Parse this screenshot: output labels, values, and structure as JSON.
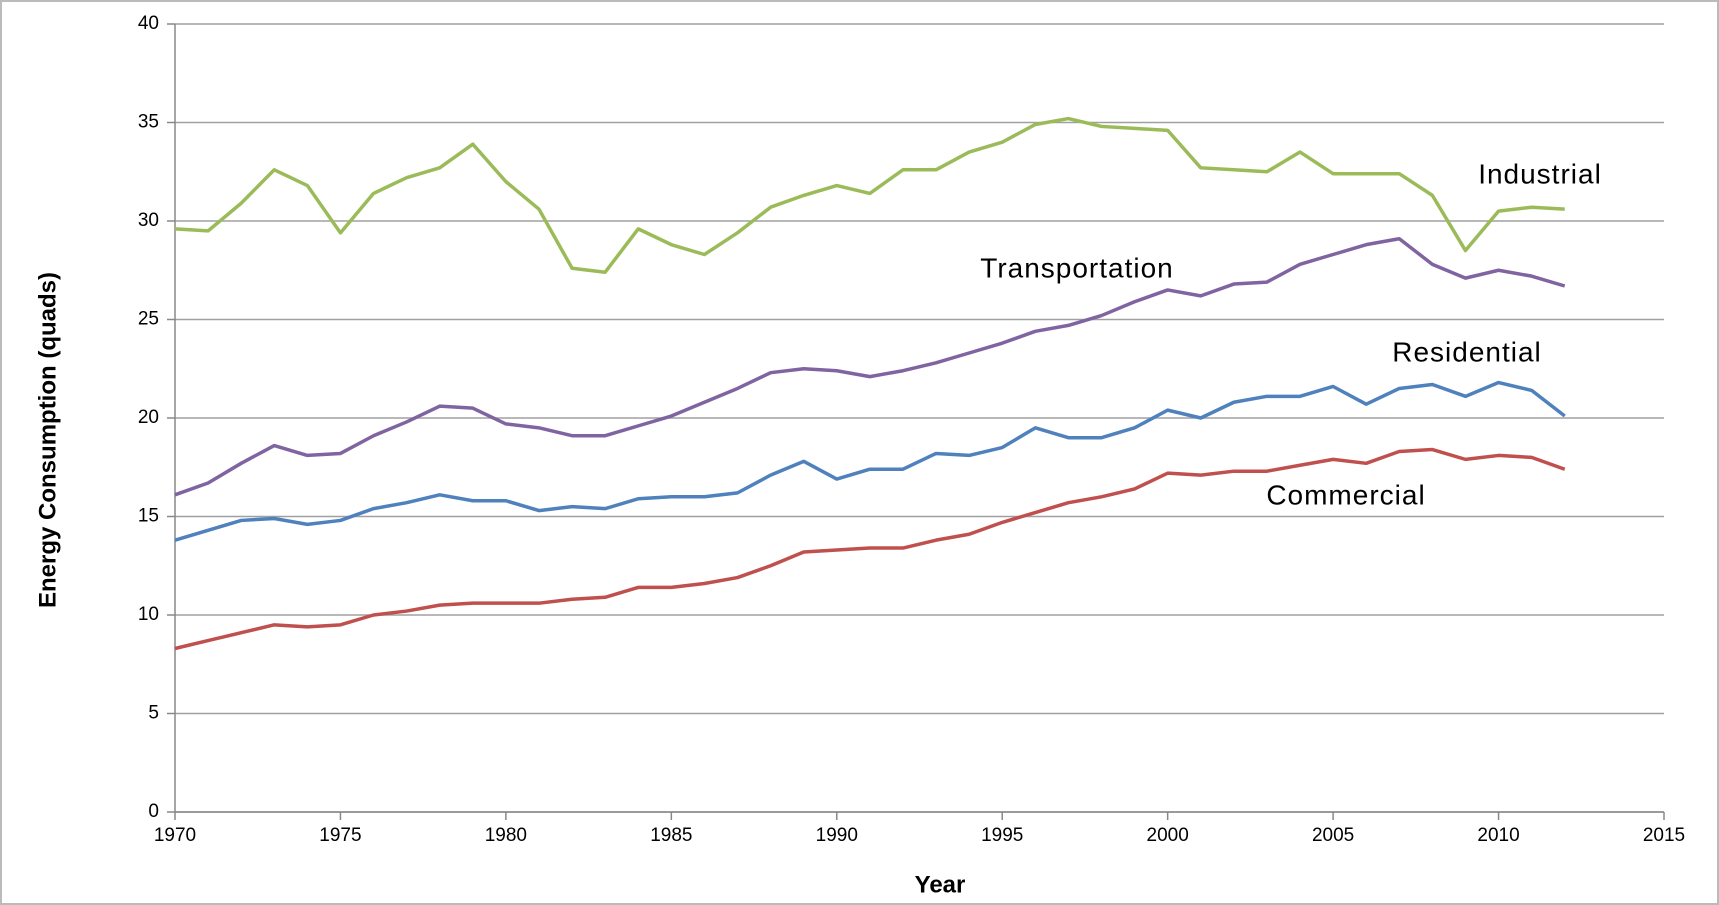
{
  "chart_data": {
    "type": "line",
    "xlabel": "Year",
    "ylabel": "Energy Consumption (quads)",
    "x": [
      1970,
      1971,
      1972,
      1973,
      1974,
      1975,
      1976,
      1977,
      1978,
      1979,
      1980,
      1981,
      1982,
      1983,
      1984,
      1985,
      1986,
      1987,
      1988,
      1989,
      1990,
      1991,
      1992,
      1993,
      1994,
      1995,
      1996,
      1997,
      1998,
      1999,
      2000,
      2001,
      2002,
      2003,
      2004,
      2005,
      2006,
      2007,
      2008,
      2009,
      2010,
      2011,
      2012
    ],
    "series": [
      {
        "name": "Industrial",
        "color": "#9bbb59",
        "values": [
          29.6,
          29.5,
          30.9,
          32.6,
          31.8,
          29.4,
          31.4,
          32.2,
          32.7,
          33.9,
          32.0,
          30.6,
          27.6,
          27.4,
          29.6,
          28.8,
          28.3,
          29.4,
          30.7,
          31.3,
          31.8,
          31.4,
          32.6,
          32.6,
          33.5,
          34.0,
          34.9,
          35.2,
          34.8,
          34.7,
          34.6,
          32.7,
          32.6,
          32.5,
          33.5,
          32.4,
          32.4,
          32.4,
          31.3,
          28.5,
          30.5,
          30.7,
          30.6
        ]
      },
      {
        "name": "Transportation",
        "color": "#8064a2",
        "values": [
          16.1,
          16.7,
          17.7,
          18.6,
          18.1,
          18.2,
          19.1,
          19.8,
          20.6,
          20.5,
          19.7,
          19.5,
          19.1,
          19.1,
          19.6,
          20.1,
          20.8,
          21.5,
          22.3,
          22.5,
          22.4,
          22.1,
          22.4,
          22.8,
          23.3,
          23.8,
          24.4,
          24.7,
          25.2,
          25.9,
          26.5,
          26.2,
          26.8,
          26.9,
          27.8,
          28.3,
          28.8,
          29.1,
          27.8,
          27.1,
          27.5,
          27.2,
          26.7
        ]
      },
      {
        "name": "Residential",
        "color": "#4f81bd",
        "values": [
          13.8,
          14.3,
          14.8,
          14.9,
          14.6,
          14.8,
          15.4,
          15.7,
          16.1,
          15.8,
          15.8,
          15.3,
          15.5,
          15.4,
          15.9,
          16.0,
          16.0,
          16.2,
          17.1,
          17.8,
          16.9,
          17.4,
          17.4,
          18.2,
          18.1,
          18.5,
          19.5,
          19.0,
          19.0,
          19.5,
          20.4,
          20.0,
          20.8,
          21.1,
          21.1,
          21.6,
          20.7,
          21.5,
          21.7,
          21.1,
          21.8,
          21.4,
          20.1
        ]
      },
      {
        "name": "Commercial",
        "color": "#c0504d",
        "values": [
          8.3,
          8.7,
          9.1,
          9.5,
          9.4,
          9.5,
          10.0,
          10.2,
          10.5,
          10.6,
          10.6,
          10.6,
          10.8,
          10.9,
          11.4,
          11.4,
          11.6,
          11.9,
          12.5,
          13.2,
          13.3,
          13.4,
          13.4,
          13.8,
          14.1,
          14.7,
          15.2,
          15.7,
          16.0,
          16.4,
          17.2,
          17.1,
          17.3,
          17.3,
          17.6,
          17.9,
          17.7,
          18.3,
          18.4,
          17.9,
          18.1,
          18.0,
          17.4
        ]
      }
    ],
    "xlim": [
      1970,
      2015
    ],
    "xticks": [
      1970,
      1975,
      1980,
      1985,
      1990,
      1995,
      2000,
      2005,
      2010,
      2015
    ],
    "ylim": [
      0,
      40
    ],
    "yticks": [
      0,
      5,
      10,
      15,
      20,
      25,
      30,
      35,
      40
    ],
    "grid": true
  }
}
